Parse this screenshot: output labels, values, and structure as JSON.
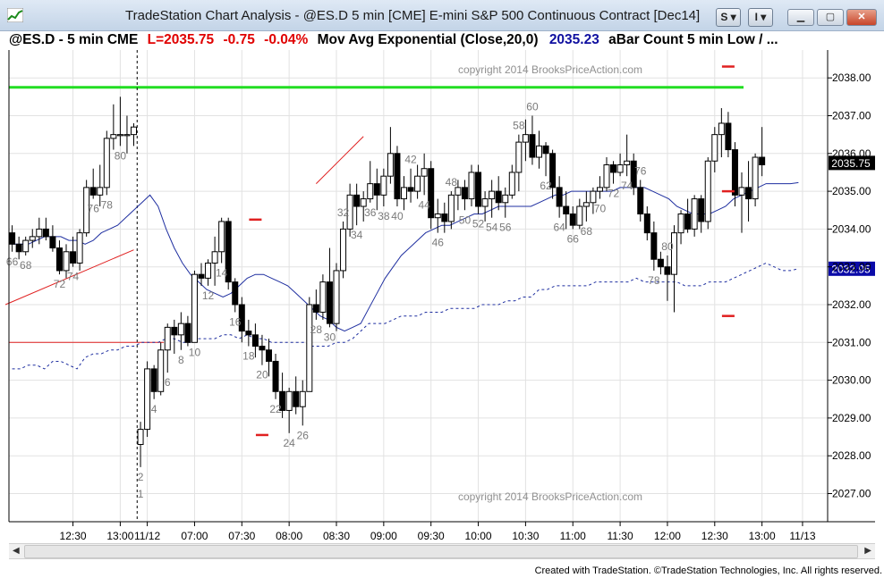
{
  "window": {
    "title": "TradeStation Chart Analysis - @ES.D 5 min [CME] E-mini S&P 500 Continuous Contract [Dec14]",
    "btn_s": "S ▾",
    "btn_i": "I ▾",
    "minimize_icon": "minimize-icon",
    "maximize_icon": "maximize-icon",
    "close_icon": "close-icon"
  },
  "infobar": {
    "symbol": "@ES.D - 5 min  CME",
    "last": "L=2035.75",
    "change": "-0.75",
    "pct": "-0.04%",
    "study": "Mov Avg Exponential (Close,20,0)",
    "study_value": "2035.23",
    "study2": "aBar Count 5 min Low / ..."
  },
  "watermark": "copyright 2014 BrooksPriceAction.com",
  "credit": "Created with TradeStation. ©TradeStation Technologies, Inc. All rights reserved.",
  "colors": {
    "ema": "#1f2fa0",
    "dotted": "#1f2fa0",
    "green_line": "#22dd22",
    "red": "#e02020",
    "up_fill": "#ffffff",
    "down_fill": "#000000",
    "label": "#7a7a7a",
    "badge_black": "#000000",
    "badge_blue": "#0a0aa8"
  },
  "chart_data": {
    "type": "candlestick",
    "ylim": [
      2026.5,
      2038.75
    ],
    "y_ticks": [
      "2027.00",
      "2028.00",
      "2029.00",
      "2030.00",
      "2031.00",
      "2032.00",
      "2033.00",
      "2034.00",
      "2035.00",
      "2036.00",
      "2037.00",
      "2038.00"
    ],
    "x_ticks": [
      "12:30",
      "13:00",
      "11/12",
      "07:00",
      "07:30",
      "08:00",
      "08:30",
      "09:00",
      "09:30",
      "10:00",
      "10:30",
      "11:00",
      "11:30",
      "12:00",
      "12:30",
      "13:00",
      "11/13"
    ],
    "last_price_label": "2035.75",
    "ema_price_label": "2032.95",
    "session_divider": "11/12",
    "bars": [
      [
        2033.9,
        2034.1,
        2033.4,
        2033.6
      ],
      [
        2033.6,
        2033.8,
        2033.2,
        2033.4
      ],
      [
        2033.4,
        2033.8,
        2033.3,
        2033.7
      ],
      [
        2033.7,
        2034.0,
        2033.5,
        2033.8
      ],
      [
        2033.8,
        2034.3,
        2033.6,
        2034.0
      ],
      [
        2034.0,
        2034.3,
        2033.7,
        2033.8
      ],
      [
        2033.8,
        2034.1,
        2033.4,
        2033.5
      ],
      [
        2033.5,
        2033.7,
        2032.8,
        2032.9
      ],
      [
        2032.9,
        2033.6,
        2032.7,
        2033.4
      ],
      [
        2033.4,
        2033.8,
        2033.0,
        2033.1
      ],
      [
        2033.1,
        2034.0,
        2032.9,
        2033.9
      ],
      [
        2033.9,
        2035.3,
        2033.8,
        2035.1
      ],
      [
        2035.1,
        2035.6,
        2034.8,
        2034.9
      ],
      [
        2034.9,
        2035.7,
        2034.6,
        2035.1
      ],
      [
        2035.1,
        2036.6,
        2034.9,
        2036.4
      ],
      [
        2036.4,
        2037.3,
        2036.1,
        2036.5
      ],
      [
        2036.5,
        2037.5,
        2036.2,
        2036.5
      ],
      [
        2036.5,
        2037.0,
        2036.0,
        2036.5
      ],
      [
        2036.5,
        2036.8,
        2036.2,
        2036.7
      ],
      [
        2028.3,
        2028.9,
        2027.7,
        2028.7
      ],
      [
        2028.7,
        2030.5,
        2028.5,
        2030.3
      ],
      [
        2030.3,
        2030.4,
        2029.5,
        2029.7
      ],
      [
        2029.7,
        2031.0,
        2029.6,
        2030.8
      ],
      [
        2030.8,
        2031.5,
        2030.2,
        2031.4
      ],
      [
        2031.4,
        2031.6,
        2030.7,
        2031.2
      ],
      [
        2031.2,
        2031.8,
        2030.8,
        2031.5
      ],
      [
        2031.5,
        2031.7,
        2030.9,
        2031.0
      ],
      [
        2031.0,
        2032.9,
        2031.0,
        2032.8
      ],
      [
        2032.8,
        2033.1,
        2032.5,
        2032.7
      ],
      [
        2032.7,
        2033.2,
        2032.5,
        2033.1
      ],
      [
        2033.1,
        2033.8,
        2032.5,
        2033.4
      ],
      [
        2033.4,
        2034.3,
        2033.1,
        2034.2
      ],
      [
        2034.2,
        2034.3,
        2032.4,
        2032.6
      ],
      [
        2032.6,
        2032.7,
        2031.8,
        2032.0
      ],
      [
        2032.0,
        2032.2,
        2031.0,
        2031.3
      ],
      [
        2031.3,
        2031.6,
        2030.9,
        2031.2
      ],
      [
        2031.2,
        2031.5,
        2030.6,
        2030.9
      ],
      [
        2030.9,
        2031.2,
        2030.4,
        2030.8
      ],
      [
        2030.8,
        2031.1,
        2030.1,
        2030.5
      ],
      [
        2030.5,
        2030.7,
        2029.5,
        2029.7
      ],
      [
        2029.7,
        2030.2,
        2029.0,
        2029.2
      ],
      [
        2029.2,
        2029.8,
        2028.6,
        2029.7
      ],
      [
        2029.7,
        2030.1,
        2029.1,
        2029.3
      ],
      [
        2029.3,
        2030.0,
        2028.8,
        2029.7
      ],
      [
        2029.7,
        2032.2,
        2029.7,
        2032.0
      ],
      [
        2032.0,
        2032.4,
        2031.6,
        2031.8
      ],
      [
        2031.8,
        2032.8,
        2031.6,
        2032.6
      ],
      [
        2032.6,
        2033.5,
        2031.4,
        2031.5
      ],
      [
        2031.5,
        2033.1,
        2031.3,
        2032.9
      ],
      [
        2032.9,
        2034.2,
        2032.7,
        2034.0
      ],
      [
        2034.0,
        2035.2,
        2033.8,
        2034.9
      ],
      [
        2034.9,
        2035.2,
        2034.1,
        2034.6
      ],
      [
        2034.6,
        2035.0,
        2034.2,
        2034.8
      ],
      [
        2034.8,
        2035.8,
        2034.7,
        2035.2
      ],
      [
        2035.2,
        2035.6,
        2034.5,
        2034.9
      ],
      [
        2034.9,
        2035.6,
        2034.6,
        2035.4
      ],
      [
        2035.4,
        2036.7,
        2035.2,
        2036.0
      ],
      [
        2036.0,
        2036.2,
        2034.6,
        2034.8
      ],
      [
        2034.8,
        2035.4,
        2034.5,
        2035.1
      ],
      [
        2035.1,
        2035.6,
        2034.7,
        2035.0
      ],
      [
        2035.0,
        2035.7,
        2034.8,
        2035.4
      ],
      [
        2035.4,
        2036.0,
        2034.9,
        2035.6
      ],
      [
        2035.6,
        2035.8,
        2034.0,
        2034.3
      ],
      [
        2034.3,
        2034.8,
        2033.9,
        2034.4
      ],
      [
        2034.4,
        2034.7,
        2033.9,
        2034.2
      ],
      [
        2034.2,
        2035.0,
        2034.0,
        2034.9
      ],
      [
        2034.9,
        2035.3,
        2034.5,
        2035.1
      ],
      [
        2035.1,
        2035.3,
        2034.5,
        2034.8
      ],
      [
        2034.8,
        2035.7,
        2034.6,
        2035.5
      ],
      [
        2035.5,
        2035.7,
        2034.4,
        2034.6
      ],
      [
        2034.6,
        2035.0,
        2034.2,
        2034.8
      ],
      [
        2034.8,
        2035.3,
        2034.3,
        2035.0
      ],
      [
        2035.0,
        2035.4,
        2034.5,
        2034.7
      ],
      [
        2034.7,
        2035.1,
        2034.3,
        2034.9
      ],
      [
        2034.9,
        2035.7,
        2034.8,
        2035.5
      ],
      [
        2035.5,
        2036.5,
        2035.0,
        2036.3
      ],
      [
        2036.3,
        2036.9,
        2035.8,
        2036.5
      ],
      [
        2036.5,
        2037.0,
        2035.7,
        2035.9
      ],
      [
        2035.9,
        2036.6,
        2035.6,
        2036.2
      ],
      [
        2036.2,
        2036.3,
        2035.4,
        2036.0
      ],
      [
        2036.0,
        2036.1,
        2034.8,
        2035.1
      ],
      [
        2035.1,
        2035.4,
        2034.3,
        2034.6
      ],
      [
        2034.6,
        2035.0,
        2034.0,
        2034.4
      ],
      [
        2034.4,
        2034.6,
        2034.0,
        2034.1
      ],
      [
        2034.1,
        2034.8,
        2034.0,
        2034.6
      ],
      [
        2034.6,
        2035.0,
        2034.2,
        2034.7
      ],
      [
        2034.7,
        2035.1,
        2034.4,
        2035.0
      ],
      [
        2035.0,
        2035.4,
        2034.8,
        2035.1
      ],
      [
        2035.1,
        2035.9,
        2035.0,
        2035.7
      ],
      [
        2035.7,
        2035.8,
        2035.2,
        2035.5
      ],
      [
        2035.5,
        2036.0,
        2035.4,
        2035.7
      ],
      [
        2035.7,
        2036.5,
        2035.4,
        2035.8
      ],
      [
        2035.8,
        2036.0,
        2034.9,
        2035.1
      ],
      [
        2035.1,
        2035.3,
        2034.2,
        2034.4
      ],
      [
        2034.4,
        2034.6,
        2033.7,
        2033.9
      ],
      [
        2033.9,
        2034.2,
        2032.9,
        2033.2
      ],
      [
        2033.2,
        2033.4,
        2032.8,
        2033.0
      ],
      [
        2033.0,
        2033.3,
        2032.1,
        2032.8
      ],
      [
        2032.8,
        2034.1,
        2031.8,
        2033.9
      ],
      [
        2033.9,
        2034.5,
        2033.6,
        2034.4
      ],
      [
        2034.4,
        2034.8,
        2033.9,
        2034.0
      ],
      [
        2034.0,
        2034.9,
        2033.8,
        2034.8
      ],
      [
        2034.8,
        2034.9,
        2033.9,
        2034.2
      ],
      [
        2034.2,
        2035.9,
        2034.0,
        2035.8
      ],
      [
        2035.8,
        2036.7,
        2035.5,
        2036.5
      ],
      [
        2036.5,
        2037.2,
        2035.9,
        2036.8
      ],
      [
        2036.8,
        2037.1,
        2035.9,
        2036.1
      ],
      [
        2036.1,
        2036.3,
        2034.6,
        2034.9
      ],
      [
        2034.9,
        2035.5,
        2033.9,
        2035.1
      ],
      [
        2035.1,
        2035.8,
        2034.2,
        2034.8
      ],
      [
        2034.8,
        2036.0,
        2034.6,
        2035.9
      ],
      [
        2035.9,
        2036.7,
        2035.4,
        2035.7
      ]
    ],
    "bar_labels": [
      {
        "bar": 0,
        "text": "66"
      },
      {
        "bar": 2,
        "text": "68"
      },
      {
        "bar": 7,
        "text": "72"
      },
      {
        "bar": 9,
        "text": "74"
      },
      {
        "bar": 12,
        "text": "76"
      },
      {
        "bar": 14,
        "text": "78"
      },
      {
        "bar": 16,
        "text": "80"
      },
      {
        "bar": 19,
        "text": "1",
        "pos": "low-far"
      },
      {
        "bar": 19,
        "text": "2"
      },
      {
        "bar": 21,
        "text": "4"
      },
      {
        "bar": 23,
        "text": "6"
      },
      {
        "bar": 25,
        "text": "8"
      },
      {
        "bar": 27,
        "text": "10"
      },
      {
        "bar": 29,
        "text": "12"
      },
      {
        "bar": 31,
        "text": "14"
      },
      {
        "bar": 33,
        "text": "16"
      },
      {
        "bar": 35,
        "text": "18"
      },
      {
        "bar": 37,
        "text": "20"
      },
      {
        "bar": 39,
        "text": "22"
      },
      {
        "bar": 41,
        "text": "24"
      },
      {
        "bar": 43,
        "text": "26"
      },
      {
        "bar": 45,
        "text": "28"
      },
      {
        "bar": 47,
        "text": "30"
      },
      {
        "bar": 49,
        "text": "32",
        "pos": "high"
      },
      {
        "bar": 51,
        "text": "34"
      },
      {
        "bar": 53,
        "text": "36"
      },
      {
        "bar": 55,
        "text": "38"
      },
      {
        "bar": 57,
        "text": "40"
      },
      {
        "bar": 59,
        "text": "42",
        "pos": "high"
      },
      {
        "bar": 61,
        "text": "44"
      },
      {
        "bar": 63,
        "text": "46"
      },
      {
        "bar": 65,
        "text": "48",
        "pos": "high"
      },
      {
        "bar": 67,
        "text": "50"
      },
      {
        "bar": 69,
        "text": "52"
      },
      {
        "bar": 71,
        "text": "54"
      },
      {
        "bar": 73,
        "text": "56"
      },
      {
        "bar": 75,
        "text": "58",
        "pos": "high"
      },
      {
        "bar": 77,
        "text": "60",
        "pos": "high"
      },
      {
        "bar": 79,
        "text": "62"
      },
      {
        "bar": 81,
        "text": "64"
      },
      {
        "bar": 83,
        "text": "66"
      },
      {
        "bar": 85,
        "text": "68"
      },
      {
        "bar": 87,
        "text": "70"
      },
      {
        "bar": 89,
        "text": "72"
      },
      {
        "bar": 91,
        "text": "74"
      },
      {
        "bar": 93,
        "text": "76",
        "pos": "high"
      },
      {
        "bar": 95,
        "text": "78"
      },
      {
        "bar": 97,
        "text": "80",
        "pos": "high"
      }
    ],
    "hlines": [
      {
        "price": 2037.75,
        "from_bar": 0,
        "to_bar": 118,
        "color": "green"
      },
      {
        "price": 2031.0,
        "from_bar": 0,
        "to_bar": 20,
        "color": "red"
      }
    ],
    "trendlines": [
      {
        "from": [
          -1,
          2032.0
        ],
        "to": [
          18,
          2033.45
        ]
      },
      {
        "from": [
          45,
          2035.2
        ],
        "to": [
          52,
          2036.45
        ]
      }
    ],
    "marks": [
      {
        "bar": 37,
        "price": 2028.55
      },
      {
        "bar": 36,
        "price": 2034.25
      },
      {
        "bar": 106,
        "price": 2038.3
      },
      {
        "bar": 106,
        "price": 2035.0
      },
      {
        "bar": 106,
        "price": 2031.7
      }
    ],
    "ema": [
      2033.6,
      2033.6,
      2033.6,
      2033.7,
      2033.8,
      2033.8,
      2033.8,
      2033.7,
      2033.7,
      2033.6,
      2033.7,
      2033.9,
      2034.0,
      2034.1,
      2034.3,
      2034.5,
      2034.7,
      2034.9,
      2034.6,
      2034.0,
      2033.5,
      2033.1,
      2032.8,
      2032.6,
      2032.4,
      2032.3,
      2032.2,
      2032.3,
      2032.5,
      2032.7,
      2032.8,
      2032.8,
      2032.7,
      2032.6,
      2032.5,
      2032.3,
      2032.1,
      2031.9,
      2031.7,
      2031.6,
      2031.4,
      2031.3,
      2031.4,
      2031.5,
      2031.9,
      2032.3,
      2032.7,
      2033.0,
      2033.3,
      2033.5,
      2033.7,
      2033.9,
      2034.0,
      2034.1,
      2034.1,
      2034.2,
      2034.3,
      2034.4,
      2034.4,
      2034.5,
      2034.6,
      2034.6,
      2034.6,
      2034.6,
      2034.6,
      2034.7,
      2034.8,
      2034.9,
      2034.9,
      2035.0,
      2035.0,
      2035.0,
      2035.0,
      2035.0,
      2035.0,
      2035.1,
      2035.1,
      2035.1,
      2035.1,
      2035.0,
      2034.9,
      2034.8,
      2034.6,
      2034.5,
      2034.4,
      2034.4,
      2034.4,
      2034.5,
      2034.6,
      2034.8,
      2034.9,
      2035.0,
      2035.1,
      2035.2,
      2035.2,
      2035.2,
      2035.2,
      2035.23
    ],
    "dotted": [
      2030.3,
      2030.3,
      2030.4,
      2030.4,
      2030.3,
      2030.5,
      2030.5,
      2030.4,
      2030.3,
      2030.6,
      2030.7,
      2030.7,
      2030.8,
      2030.8,
      2030.9,
      2030.9,
      2031.0,
      2031.0,
      2031.0,
      2031.1,
      2031.1,
      2031.0,
      2031.0,
      2031.1,
      2031.1,
      2031.1,
      2031.2,
      2031.2,
      2031.1,
      2031.2,
      2031.1,
      2031.1,
      2031.0,
      2031.0,
      2031.0,
      2031.0,
      2031.0,
      2030.9,
      2030.9,
      2030.9,
      2031.0,
      2031.0,
      2031.1,
      2031.3,
      2031.5,
      2031.5,
      2031.5,
      2031.6,
      2031.7,
      2031.7,
      2031.7,
      2031.8,
      2031.8,
      2031.8,
      2031.9,
      2031.9,
      2031.9,
      2031.9,
      2032.0,
      2032.0,
      2032.0,
      2032.1,
      2032.1,
      2032.2,
      2032.2,
      2032.4,
      2032.4,
      2032.5,
      2032.5,
      2032.5,
      2032.5,
      2032.5,
      2032.6,
      2032.6,
      2032.6,
      2032.6,
      2032.6,
      2032.7,
      2032.6,
      2032.6,
      2032.6,
      2032.6,
      2032.6,
      2032.5,
      2032.5,
      2032.5,
      2032.6,
      2032.6,
      2032.6,
      2032.7,
      2032.8,
      2032.9,
      2033.0,
      2033.1,
      2033.0,
      2032.9,
      2032.9,
      2032.95
    ]
  }
}
